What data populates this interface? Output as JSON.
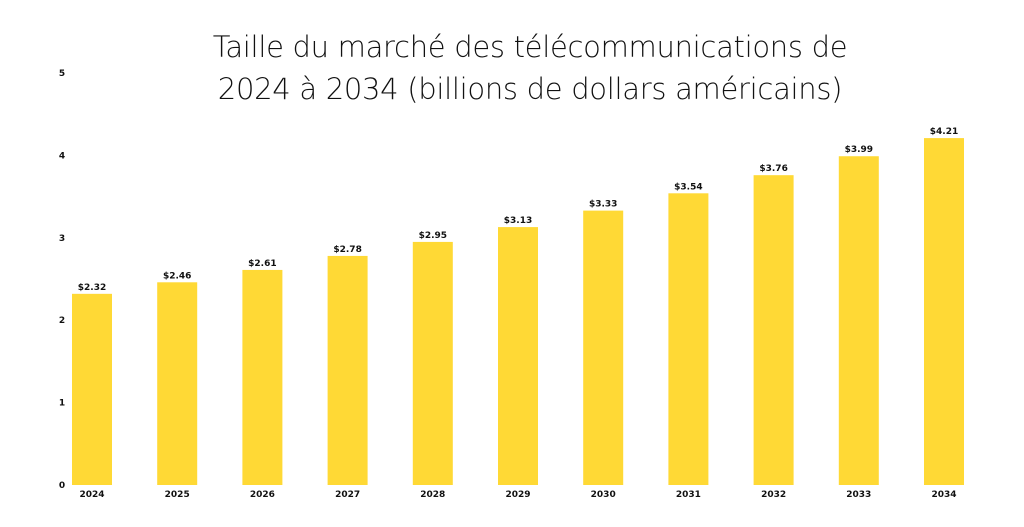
{
  "chart_data": {
    "type": "bar",
    "title_line1": "Taille du marché des télécommunications de",
    "title_line2": "2024 à 2034 (billions de dollars américains)",
    "xlabel": "",
    "ylabel": "",
    "ylim": [
      0,
      5
    ],
    "yticks": [
      "0",
      "1",
      "2",
      "3",
      "4",
      "5"
    ],
    "grid": false,
    "categories": [
      "2024",
      "2025",
      "2026",
      "2027",
      "2028",
      "2029",
      "2030",
      "2031",
      "2032",
      "2033",
      "2034"
    ],
    "values": [
      2.32,
      2.46,
      2.61,
      2.78,
      2.95,
      3.13,
      3.33,
      3.54,
      3.76,
      3.99,
      4.21
    ],
    "data_labels": [
      "$2.32",
      "$2.46",
      "$2.61",
      "$2.78",
      "$2.95",
      "$3.13",
      "$3.33",
      "$3.54",
      "$3.76",
      "$3.99",
      "$4.21"
    ],
    "bar_color": "#FFD935"
  }
}
